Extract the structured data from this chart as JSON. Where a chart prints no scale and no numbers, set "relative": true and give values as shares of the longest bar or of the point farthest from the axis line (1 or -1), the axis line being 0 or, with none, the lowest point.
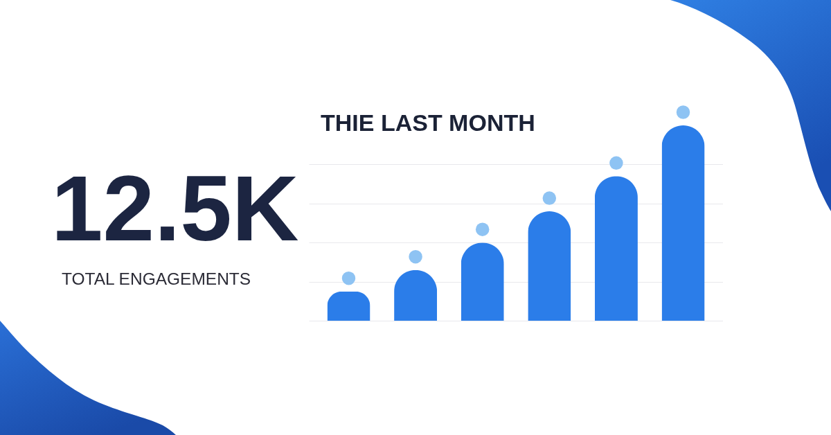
{
  "chart_data": [
    {
      "type": "other",
      "title": "12.5K",
      "subtitle": "TOTAL ENGAGEMENTS"
    },
    {
      "type": "bar",
      "title": "THIE LAST MONTH",
      "categories": [
        null,
        null,
        null,
        null,
        null,
        null
      ],
      "values": [
        0.15,
        0.26,
        0.4,
        0.56,
        0.74,
        1
      ],
      "color": "#2b7de9",
      "relative": true,
      "grid": "y"
    }
  ]
}
